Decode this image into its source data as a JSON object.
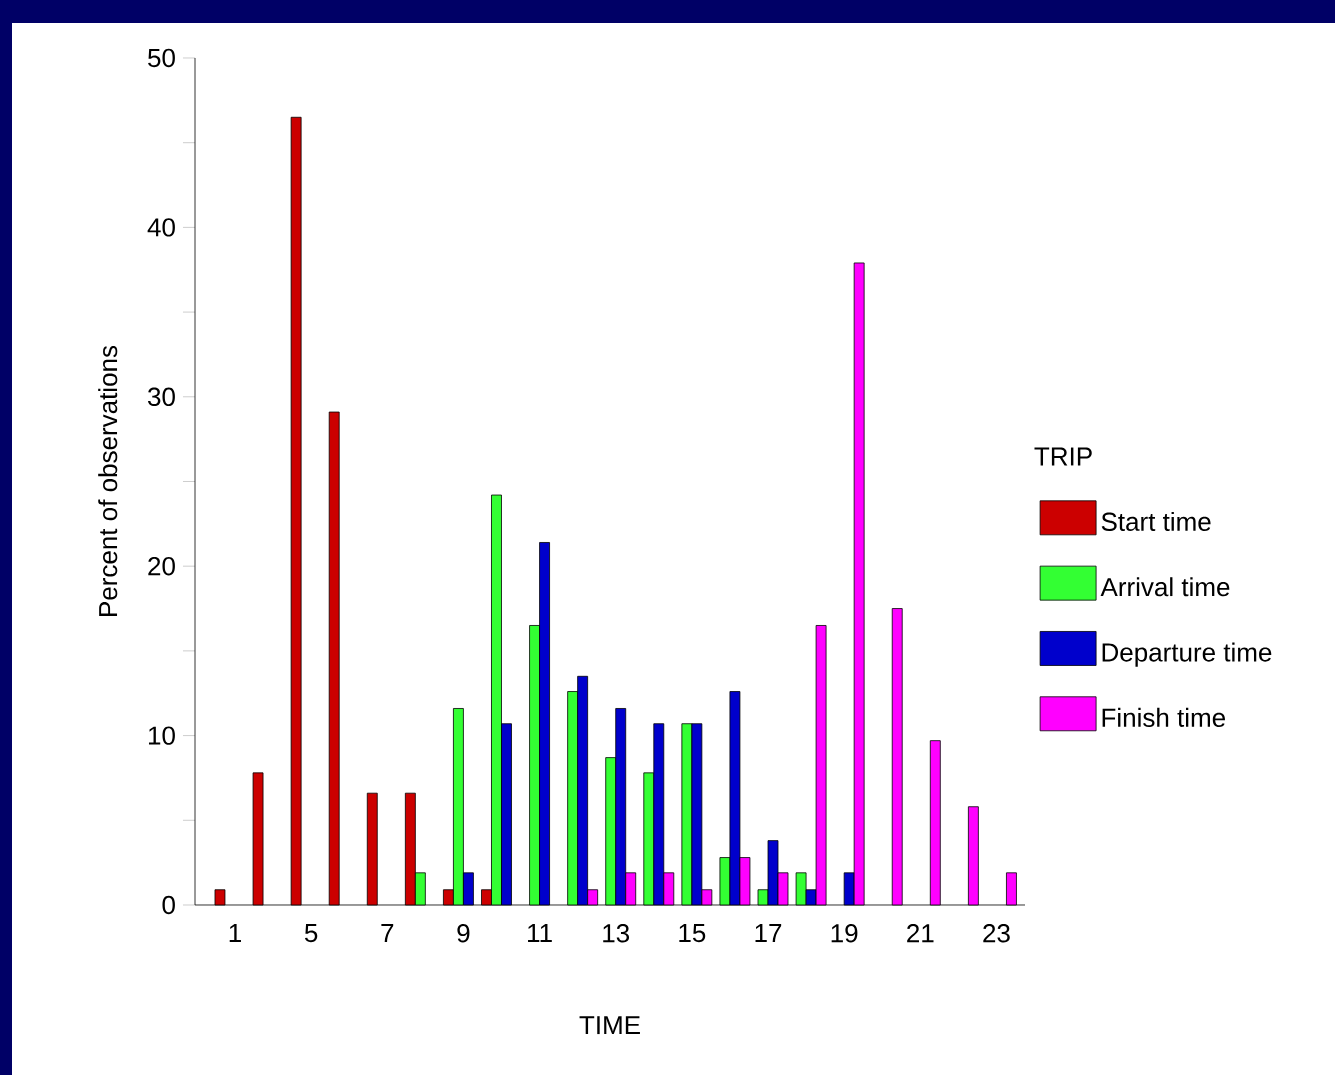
{
  "chart_data": {
    "type": "bar",
    "xlabel": "TIME",
    "ylabel": "Percent of observations",
    "legend_title": "TRIP",
    "legend": "right",
    "categories": [
      "1",
      null,
      "5",
      null,
      "7",
      null,
      "9",
      null,
      "11",
      null,
      "13",
      null,
      "15",
      null,
      "17",
      null,
      "19",
      null,
      "21",
      null,
      "23"
    ],
    "ylim": [
      0,
      50
    ],
    "yticks": [
      0,
      {
        "value": 5,
        "label": null
      },
      10,
      {
        "value": 15,
        "label": null
      },
      20,
      {
        "value": 25,
        "label": null
      },
      30,
      {
        "value": 35,
        "label": null
      },
      40,
      {
        "value": 45,
        "label": null
      },
      50
    ],
    "series": [
      {
        "name": "Start time",
        "color": "#cc0000",
        "values": [
          0.9,
          7.8,
          46.5,
          29.1,
          6.6,
          6.6,
          0.9,
          0.9,
          null,
          null,
          null,
          null,
          null,
          null,
          null,
          null,
          null,
          null,
          null,
          null,
          null
        ]
      },
      {
        "name": "Arrival time",
        "color": "#33ff33",
        "values": [
          null,
          null,
          null,
          null,
          null,
          1.9,
          11.6,
          24.2,
          16.5,
          12.6,
          8.7,
          7.8,
          10.7,
          2.8,
          0.9,
          1.9,
          null,
          null,
          null,
          null,
          null
        ]
      },
      {
        "name": "Departure time",
        "color": "#0000cc",
        "values": [
          null,
          null,
          null,
          null,
          null,
          null,
          1.9,
          10.7,
          21.4,
          13.5,
          11.6,
          10.7,
          10.7,
          12.6,
          3.8,
          0.9,
          1.9,
          null,
          null,
          null,
          null
        ]
      },
      {
        "name": "Finish time",
        "color": "#ff00ff",
        "values": [
          null,
          null,
          null,
          null,
          null,
          null,
          null,
          null,
          null,
          0.9,
          1.9,
          1.9,
          0.9,
          2.8,
          1.9,
          16.5,
          37.9,
          17.5,
          9.7,
          5.8,
          1.9
        ]
      }
    ]
  }
}
